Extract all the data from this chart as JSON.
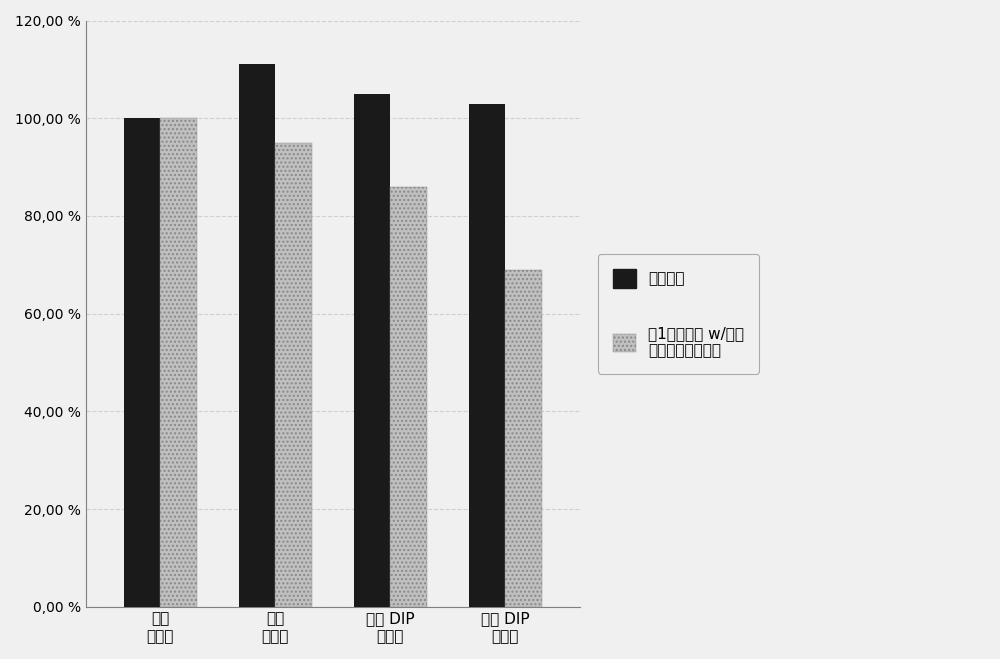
{
  "categories": [
    "入口\n前浮选",
    "出口\n后浮选",
    "入口 DIP\n储存塔",
    "出口 DIP\n储存塔"
  ],
  "series1_values": [
    100.0,
    111.0,
    105.0,
    103.0
  ],
  "series2_values": [
    100.0,
    95.0,
    86.0,
    69.0
  ],
  "series1_color": "#1a1a1a",
  "series2_color": "#c0c0c0",
  "series1_label": "参比条件",
  "series2_label": "在1个月之后 w/所掺\n入的有机硅衍生物",
  "ylim": [
    0,
    120
  ],
  "yticks": [
    0,
    20,
    40,
    60,
    80,
    100,
    120
  ],
  "ytick_labels": [
    "0,00 %",
    "20,00 %",
    "40,00 %",
    "60,00 %",
    "80,00 %",
    "100,00 %",
    "120,00 %"
  ],
  "bar_width": 0.32,
  "background_color": "#f0f0f0",
  "plot_bg_color": "#f0f0f0",
  "grid_color": "#d0d0d0",
  "border_color": "#808080",
  "figsize": [
    10.0,
    6.59
  ],
  "dpi": 100
}
